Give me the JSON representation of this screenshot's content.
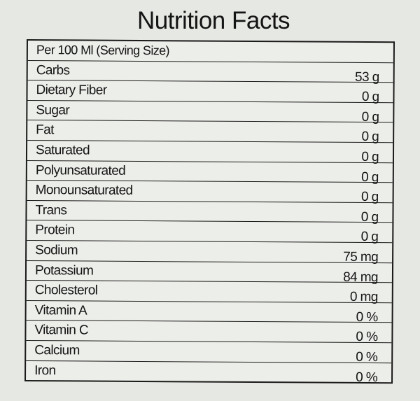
{
  "title": "Nutrition Facts",
  "serving": "Per 100 Ml (Serving Size)",
  "rows": [
    {
      "label": "Carbs",
      "value": "53 g"
    },
    {
      "label": "Dietary Fiber",
      "value": "0 g"
    },
    {
      "label": "Sugar",
      "value": "0 g"
    },
    {
      "label": "Fat",
      "value": "0 g"
    },
    {
      "label": "Saturated",
      "value": "0 g"
    },
    {
      "label": "Polyunsaturated",
      "value": "0 g"
    },
    {
      "label": "Monounsaturated",
      "value": "0 g"
    },
    {
      "label": "Trans",
      "value": "0 g"
    },
    {
      "label": "Protein",
      "value": "0 g"
    },
    {
      "label": "Sodium",
      "value": "75 mg"
    },
    {
      "label": "Potassium",
      "value": "84 mg"
    },
    {
      "label": "Cholesterol",
      "value": "0 mg"
    },
    {
      "label": "Vitamin A",
      "value": "0 %"
    },
    {
      "label": "Vitamin C",
      "value": "0 %"
    },
    {
      "label": "Calcium",
      "value": "0 %"
    },
    {
      "label": "Iron",
      "value": "0 %"
    }
  ]
}
